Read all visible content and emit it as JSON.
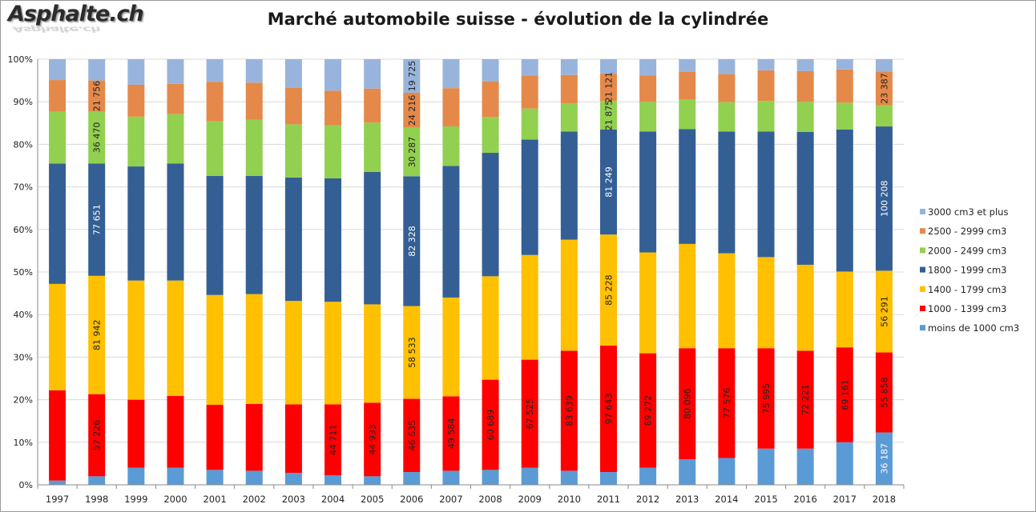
{
  "logo": "Asphalte.ch",
  "colors": {
    "s0": "#5b9bd5",
    "s1": "#ff0000",
    "s2": "#ffc000",
    "s3": "#345f95",
    "s4": "#92d050",
    "s5": "#e4894a",
    "s6": "#99b4dc"
  },
  "chart_data": {
    "type": "bar",
    "stacked": "percent",
    "title": "Marché automobile suisse - évolution de la cylindrée",
    "categories": [
      "1997",
      "1998",
      "1999",
      "2000",
      "2001",
      "2002",
      "2003",
      "2004",
      "2005",
      "2006",
      "2007",
      "2008",
      "2009",
      "2010",
      "2011",
      "2012",
      "2013",
      "2014",
      "2015",
      "2016",
      "2017",
      "2018"
    ],
    "y_ticks": [
      "0%",
      "10%",
      "20%",
      "30%",
      "40%",
      "50%",
      "60%",
      "70%",
      "80%",
      "90%",
      "100%"
    ],
    "ylim": [
      0,
      100
    ],
    "grid": true,
    "legend_position": "right",
    "legend_order": [
      6,
      5,
      4,
      3,
      2,
      1,
      0
    ],
    "series": [
      {
        "name": "moins de 1000 cm3",
        "color": "s0",
        "values": [
          1,
          2,
          4,
          4,
          3.5,
          3.3,
          2.8,
          2.2,
          2,
          3,
          3.3,
          3.5,
          4,
          3.3,
          3,
          4,
          6,
          6.3,
          8.5,
          8.5,
          10,
          12.3
        ],
        "labels": {
          "21": "36 187"
        }
      },
      {
        "name": "1000 - 1399 cm3",
        "color": "s1",
        "values": [
          21.2,
          19.3,
          16,
          16.9,
          15.3,
          15.7,
          16.1,
          16.7,
          17.3,
          17.2,
          17.5,
          21.2,
          25.4,
          28.2,
          29.7,
          26.9,
          26.1,
          25.8,
          23.6,
          23,
          22.3,
          18.8
        ],
        "labels": {
          "1": "57 226",
          "7": "44 711",
          "8": "44 933",
          "9": "46 635",
          "10": "49 584",
          "11": "60 689",
          "12": "67 525",
          "13": "83 639",
          "14": "97 643",
          "15": "89 272",
          "16": "80 096",
          "17": "77 576",
          "18": "75 995",
          "19": "72 221",
          "20": "69 161",
          "21": "55 858"
        }
      },
      {
        "name": "1400 - 1799 cm3",
        "color": "s2",
        "values": [
          25,
          27.8,
          28,
          27.1,
          25.8,
          25.8,
          24.3,
          24.1,
          23.1,
          21.8,
          23.2,
          24.3,
          24.6,
          26.1,
          26.1,
          23.7,
          24.5,
          22.3,
          21.4,
          20.2,
          17.8,
          19.2
        ],
        "labels": {
          "1": "81 942",
          "9": "58 533",
          "14": "85 228",
          "21": "56 291"
        }
      },
      {
        "name": "1800 - 1999 cm3",
        "color": "s3",
        "values": [
          28.3,
          26.4,
          26.8,
          27.5,
          28,
          27.8,
          29,
          29,
          31.1,
          30.5,
          30.9,
          29,
          27.1,
          25.4,
          24.7,
          28.4,
          27,
          28.6,
          29.5,
          31.2,
          33.4,
          33.9
        ],
        "labels": {
          "1": "77 651",
          "9": "82 328",
          "14": "81 249",
          "21": "100 208"
        }
      },
      {
        "name": "2000 - 2499 cm3",
        "color": "s4",
        "values": [
          12.2,
          12.2,
          11.7,
          11.6,
          12.8,
          13.2,
          12.5,
          12.5,
          11.6,
          11.4,
          9.3,
          8.4,
          7.3,
          6.6,
          6.7,
          7,
          7,
          6.9,
          7.2,
          7.1,
          6.3,
          5
        ],
        "labels": {
          "1": "36 470",
          "9": "30 287",
          "14": "21 875"
        }
      },
      {
        "name": "2500 - 2999 cm3",
        "color": "s5",
        "values": [
          7.4,
          7.3,
          7.5,
          7.1,
          9.3,
          8.7,
          8.6,
          8.1,
          8,
          8.2,
          9,
          8.4,
          7.8,
          6.7,
          6.4,
          6.2,
          6.4,
          6.6,
          7.2,
          7.2,
          7.8,
          7.9
        ],
        "labels": {
          "1": "21 756",
          "9": "24 216",
          "14": "21 121",
          "21": "23 387"
        }
      },
      {
        "name": "3000 cm3 et plus",
        "color": "s6",
        "values": [
          4.9,
          5,
          6,
          5.8,
          5.3,
          5.5,
          6.7,
          7.4,
          6.9,
          7.9,
          6.8,
          5.2,
          3.8,
          3.7,
          3.4,
          3.8,
          3,
          3.5,
          2.6,
          2.8,
          2.4,
          2.9
        ],
        "labels": {
          "9": "19 725"
        }
      }
    ]
  }
}
